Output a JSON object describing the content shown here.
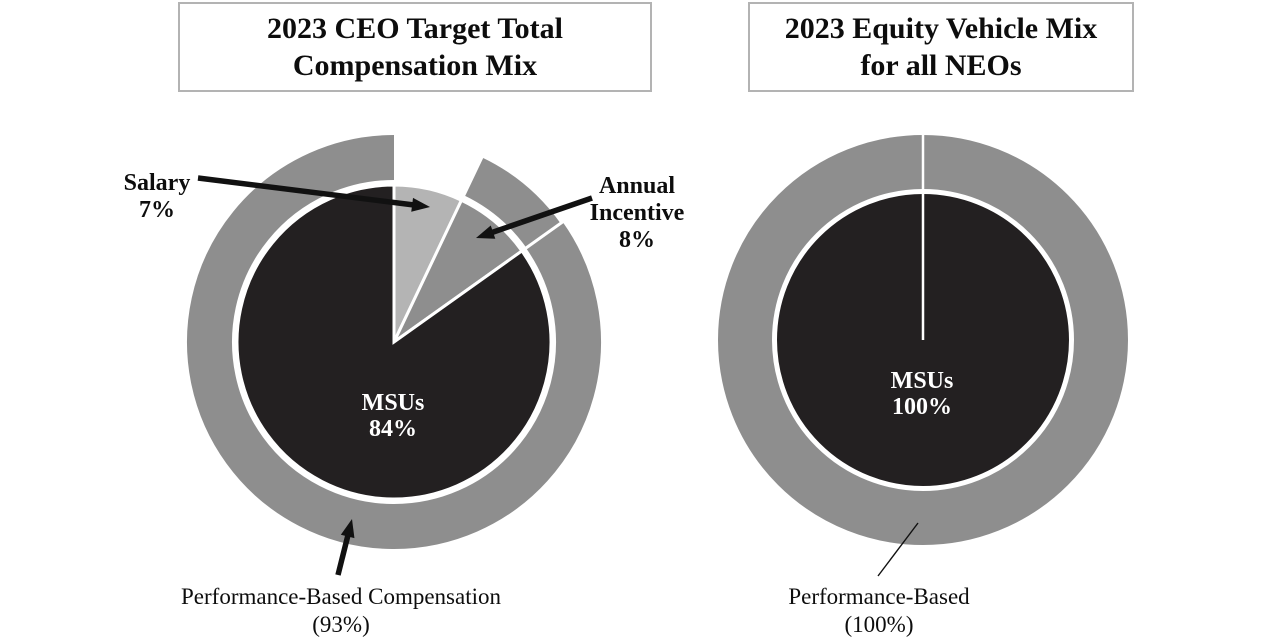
{
  "colors": {
    "slice_dark": "#232021",
    "ring_gray": "#8e8e8e",
    "salary_gray": "#b4b4b4",
    "outline_white": "#ffffff",
    "arrow_black": "#111111",
    "title_border": "#b3b3b3",
    "background": "#ffffff"
  },
  "chart_data": [
    {
      "type": "pie",
      "title": "2023 CEO Target Total Compensation Mix",
      "title_display": "2023 CEO Target Total\nCompensation Mix",
      "legend_position": "none",
      "units": "%",
      "slices": [
        {
          "label": "Salary",
          "value": 7,
          "display": "Salary\n7%",
          "color": "#b4b4b4"
        },
        {
          "label": "Annual Incentive",
          "value": 8,
          "display": "Annual\nIncentive\n8%",
          "color": "#8e8e8e",
          "exploded": true
        },
        {
          "label": "MSUs",
          "value": 84,
          "display": "MSUs\n84%",
          "color": "#232021",
          "label_color": "#ffffff"
        }
      ],
      "outer_ring": {
        "label": "Performance-Based Compensation",
        "value": 93,
        "display": "Performance-Based Compensation\n(93%)",
        "color": "#8e8e8e"
      }
    },
    {
      "type": "pie",
      "title": "2023 Equity Vehicle Mix for all NEOs",
      "title_display": "2023 Equity Vehicle Mix\nfor all NEOs",
      "legend_position": "none",
      "units": "%",
      "slices": [
        {
          "label": "MSUs",
          "value": 100,
          "display": "MSUs\n100%",
          "color": "#232021",
          "label_color": "#ffffff"
        }
      ],
      "outer_ring": {
        "label": "Performance-Based",
        "value": 100,
        "display": "Performance-Based\n(100%)",
        "color": "#8e8e8e"
      }
    }
  ]
}
